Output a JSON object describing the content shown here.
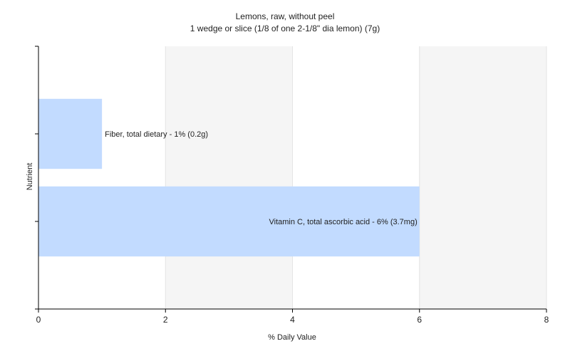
{
  "chart_data": {
    "type": "bar",
    "orientation": "horizontal",
    "title": "Lemons, raw, without peel",
    "subtitle": "1 wedge or slice (1/8 of one 2-1/8\" dia lemon) (7g)",
    "xlabel": "% Daily Value",
    "ylabel": "Nutrient",
    "xlim": [
      0,
      8
    ],
    "xticks": [
      "0",
      "2",
      "4",
      "6",
      "8"
    ],
    "grid": true,
    "bar_color": "#c2dbff",
    "categories": [
      "Fiber, total dietary",
      "Vitamin C, total ascorbic acid"
    ],
    "values": [
      1,
      6
    ],
    "data_labels": [
      "Fiber, total dietary - 1% (0.2g)",
      "Vitamin C, total ascorbic acid - 6% (3.7mg)"
    ]
  }
}
